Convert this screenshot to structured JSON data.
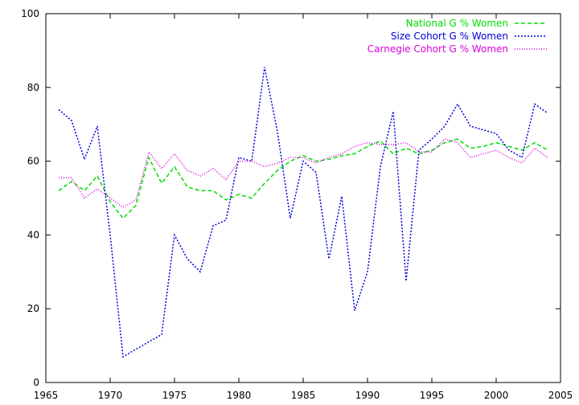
{
  "chart_data": {
    "type": "line",
    "title": "",
    "xlabel": "",
    "ylabel": "",
    "xlim": [
      1965,
      2005
    ],
    "ylim": [
      0,
      100
    ],
    "x_ticks": [
      1965,
      1970,
      1975,
      1980,
      1985,
      1990,
      1995,
      2000,
      2005
    ],
    "y_ticks": [
      0,
      20,
      40,
      60,
      80,
      100
    ],
    "grid": false,
    "legend_position": "top-right",
    "x": [
      1966,
      1967,
      1968,
      1969,
      1970,
      1971,
      1972,
      1973,
      1974,
      1975,
      1976,
      1977,
      1978,
      1979,
      1980,
      1981,
      1982,
      1983,
      1984,
      1985,
      1986,
      1987,
      1988,
      1989,
      1990,
      1991,
      1992,
      1993,
      1994,
      1995,
      1996,
      1997,
      1998,
      1999,
      2000,
      2001,
      2002,
      2003,
      2004
    ],
    "series": [
      {
        "name": "National G % Women",
        "color": "#00dd00",
        "dash": "dashed",
        "values": [
          52,
          54.5,
          52,
          56,
          49,
          44.5,
          48,
          61,
          54,
          58.5,
          53,
          52,
          52,
          49.5,
          51,
          50,
          54,
          57.5,
          60,
          61.5,
          60,
          60.5,
          61.5,
          62,
          64,
          65.5,
          62,
          63.5,
          62,
          63,
          65,
          66,
          63.5,
          64,
          65,
          64,
          63,
          65,
          63
        ]
      },
      {
        "name": "Size Cohort G % Women",
        "color": "#0000dd",
        "dash": "dotted",
        "values": [
          74,
          71,
          60.5,
          69.5,
          40,
          7,
          9,
          11,
          13,
          40,
          33.5,
          30,
          42.5,
          44,
          61,
          60,
          85.5,
          68,
          44.5,
          60,
          57,
          33.5,
          50.5,
          19.5,
          30,
          58.5,
          73.5,
          27.5,
          63,
          66,
          69.5,
          75.5,
          69.5,
          68.5,
          67.5,
          63,
          61,
          75.5,
          73
        ]
      },
      {
        "name": "Carnegie Cohort G % Women",
        "color": "#dd00dd",
        "dash": "fine-dotted",
        "values": [
          55.5,
          55.5,
          50,
          52.5,
          50,
          47.5,
          49.5,
          62.5,
          58,
          62,
          57.5,
          56,
          58,
          55,
          60,
          60,
          58.5,
          59.5,
          61,
          61,
          59.5,
          61,
          62,
          64,
          65,
          64.5,
          64.5,
          65,
          62.5,
          62.5,
          66,
          65,
          61,
          62,
          63,
          61,
          59.5,
          63.5,
          61
        ]
      }
    ]
  }
}
